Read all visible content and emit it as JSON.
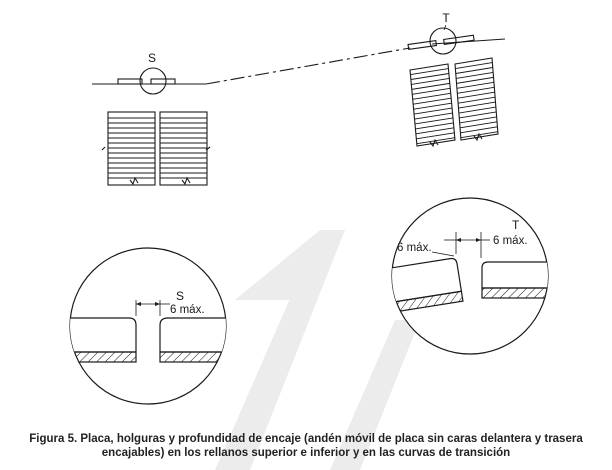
{
  "labels": {
    "top_s": "S",
    "top_t": "T",
    "detail_s_letter": "S",
    "detail_s_dim": "6 máx.",
    "detail_t_letter": "T",
    "detail_t_dim_left": "6 máx.",
    "detail_t_dim_right": "6 máx."
  },
  "caption": {
    "line1": "Figura 5. Placa, holguras y profundidad de encaje (andén móvil de placa sin caras delantera y trasera",
    "line2": "encajables) en los rellanos superior e inferior y en las curvas de transición"
  },
  "colors": {
    "ink": "#1a1a1a",
    "watermark": "#e6e6e6"
  }
}
